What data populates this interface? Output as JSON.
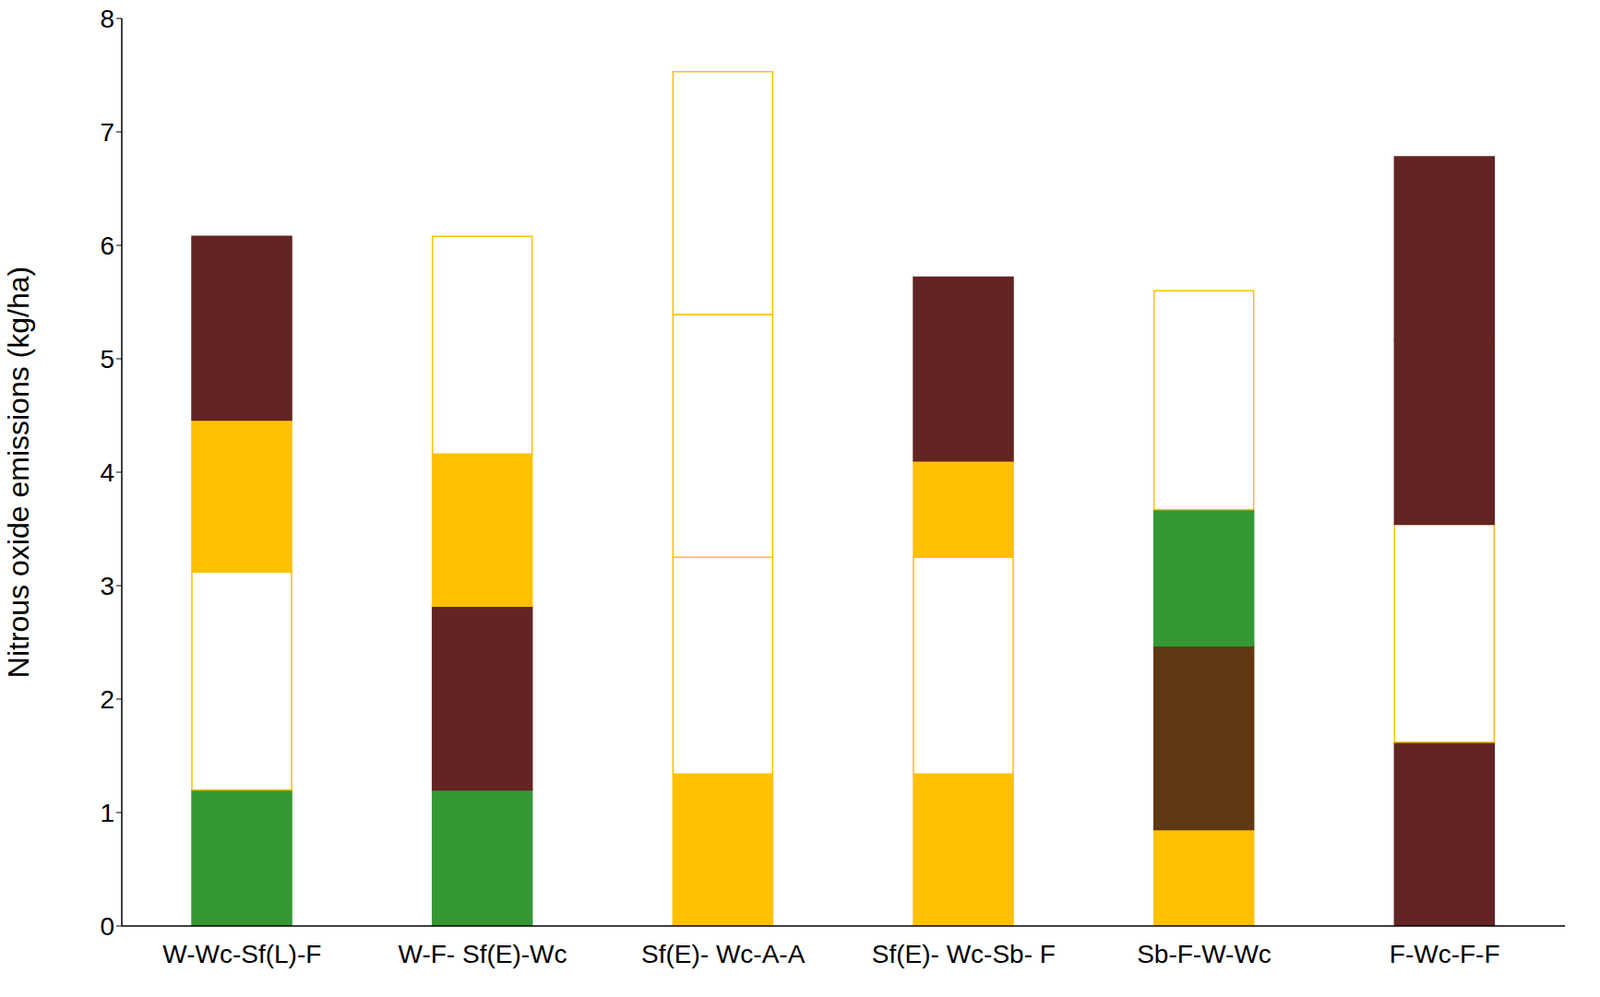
{
  "chart_data": {
    "type": "bar",
    "stacked": true,
    "y_label": "Nitrous oxide emissions (kg/ha)",
    "categories": [
      "W-Wc-Sf(L)-F",
      "W-F- Sf(E)-Wc",
      "Sf(E)- Wc-A-A",
      "Sf(E)- Wc-Sb- F",
      "Sb-F-W-Wc",
      "F-Wc-F-F"
    ],
    "series": [
      {
        "values": [
          1.2,
          1.2,
          1.34,
          1.34,
          0.85,
          1.62
        ],
        "colors": [
          "#339933",
          "#339933",
          "#ffc000",
          "#ffc000",
          "#ffc000",
          "#632523"
        ]
      },
      {
        "values": [
          1.92,
          1.62,
          1.91,
          1.91,
          1.62,
          1.92
        ],
        "colors": [
          "#ffffff",
          "#632523",
          "#ffffff",
          "#ffffff",
          "#603913",
          "#ffffff"
        ]
      },
      {
        "values": [
          1.34,
          1.34,
          2.14,
          0.85,
          1.2,
          1.62
        ],
        "colors": [
          "#ffc000",
          "#ffc000",
          "#ffffff",
          "#ffc000",
          "#339933",
          "#632523"
        ]
      },
      {
        "values": [
          1.62,
          1.92,
          2.14,
          1.62,
          1.93,
          1.62
        ],
        "colors": [
          "#632523",
          "#ffffff",
          "#ffffff",
          "#632523",
          "#ffffff",
          "#632523"
        ]
      }
    ],
    "ylim": [
      0,
      8
    ],
    "yticks": [
      0,
      1,
      2,
      3,
      4,
      5,
      6,
      7,
      8
    ],
    "grid": false
  }
}
